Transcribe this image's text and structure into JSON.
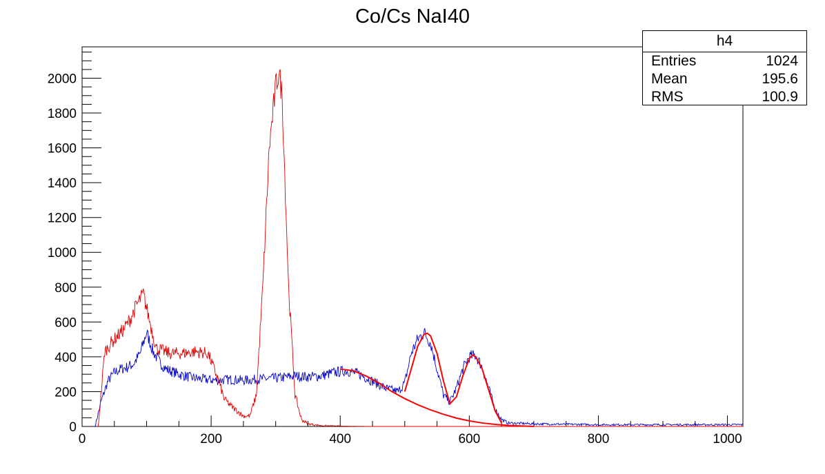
{
  "chart_data": {
    "type": "line",
    "title": "Co/Cs NaI40",
    "xlim": [
      0,
      1024
    ],
    "ylim": [
      0,
      2180
    ],
    "x_ticks": [
      0,
      200,
      400,
      600,
      800,
      1000
    ],
    "y_ticks": [
      0,
      200,
      400,
      600,
      800,
      1000,
      1200,
      1400,
      1600,
      1800,
      2000
    ],
    "grid": false,
    "legend": "none",
    "stats_box": {
      "name": "h4",
      "rows": [
        {
          "label": "Entries",
          "value": "1024"
        },
        {
          "label": "Mean",
          "value": "195.6"
        },
        {
          "label": "RMS",
          "value": "100.9"
        }
      ]
    },
    "series": [
      {
        "color": "#0000cc",
        "style": "histogram",
        "x": [
          20,
          30,
          40,
          50,
          60,
          70,
          80,
          90,
          100,
          110,
          120,
          130,
          150,
          170,
          190,
          210,
          230,
          250,
          270,
          290,
          310,
          330,
          350,
          370,
          390,
          410,
          430,
          450,
          470,
          490,
          500,
          510,
          520,
          530,
          540,
          550,
          560,
          570,
          580,
          590,
          600,
          610,
          620,
          630,
          640,
          650,
          660,
          700,
          800,
          900,
          1024
        ],
        "y": [
          0,
          150,
          260,
          310,
          330,
          340,
          360,
          420,
          540,
          430,
          370,
          330,
          300,
          280,
          270,
          265,
          270,
          265,
          270,
          275,
          280,
          290,
          285,
          290,
          310,
          320,
          300,
          260,
          220,
          200,
          250,
          420,
          500,
          540,
          480,
          330,
          180,
          140,
          220,
          330,
          400,
          410,
          340,
          220,
          100,
          40,
          20,
          15,
          10,
          10,
          10
        ]
      },
      {
        "color": "#dd0000",
        "style": "histogram",
        "x": [
          25,
          35,
          45,
          55,
          65,
          75,
          85,
          95,
          105,
          115,
          135,
          155,
          175,
          195,
          210,
          220,
          230,
          240,
          250,
          260,
          270,
          280,
          290,
          300,
          305,
          310,
          320,
          330,
          340,
          350,
          370,
          400,
          450,
          500,
          550,
          600,
          700,
          800,
          1024
        ],
        "y": [
          0,
          430,
          480,
          520,
          560,
          620,
          700,
          760,
          600,
          450,
          420,
          420,
          430,
          420,
          280,
          160,
          120,
          90,
          60,
          60,
          180,
          800,
          1600,
          1950,
          2040,
          1900,
          800,
          180,
          40,
          15,
          5,
          2,
          0,
          0,
          0,
          0,
          0,
          0,
          0
        ]
      },
      {
        "color": "#ff0000",
        "style": "line",
        "x": [
          400,
          420,
          440,
          460,
          480,
          500,
          520,
          540,
          560,
          580,
          600,
          620,
          640,
          660,
          680,
          700
        ],
        "y": [
          330,
          320,
          290,
          250,
          200,
          160,
          125,
          95,
          70,
          48,
          32,
          20,
          12,
          6,
          3,
          0
        ]
      },
      {
        "color": "#ff0000",
        "style": "line",
        "x": [
          500,
          510,
          520,
          530,
          535,
          540,
          550,
          560,
          570,
          580,
          590,
          600,
          605,
          610,
          620,
          630,
          640,
          650
        ],
        "y": [
          200,
          330,
          460,
          530,
          535,
          520,
          420,
          260,
          130,
          170,
          290,
          390,
          410,
          400,
          330,
          210,
          90,
          20
        ]
      }
    ]
  }
}
